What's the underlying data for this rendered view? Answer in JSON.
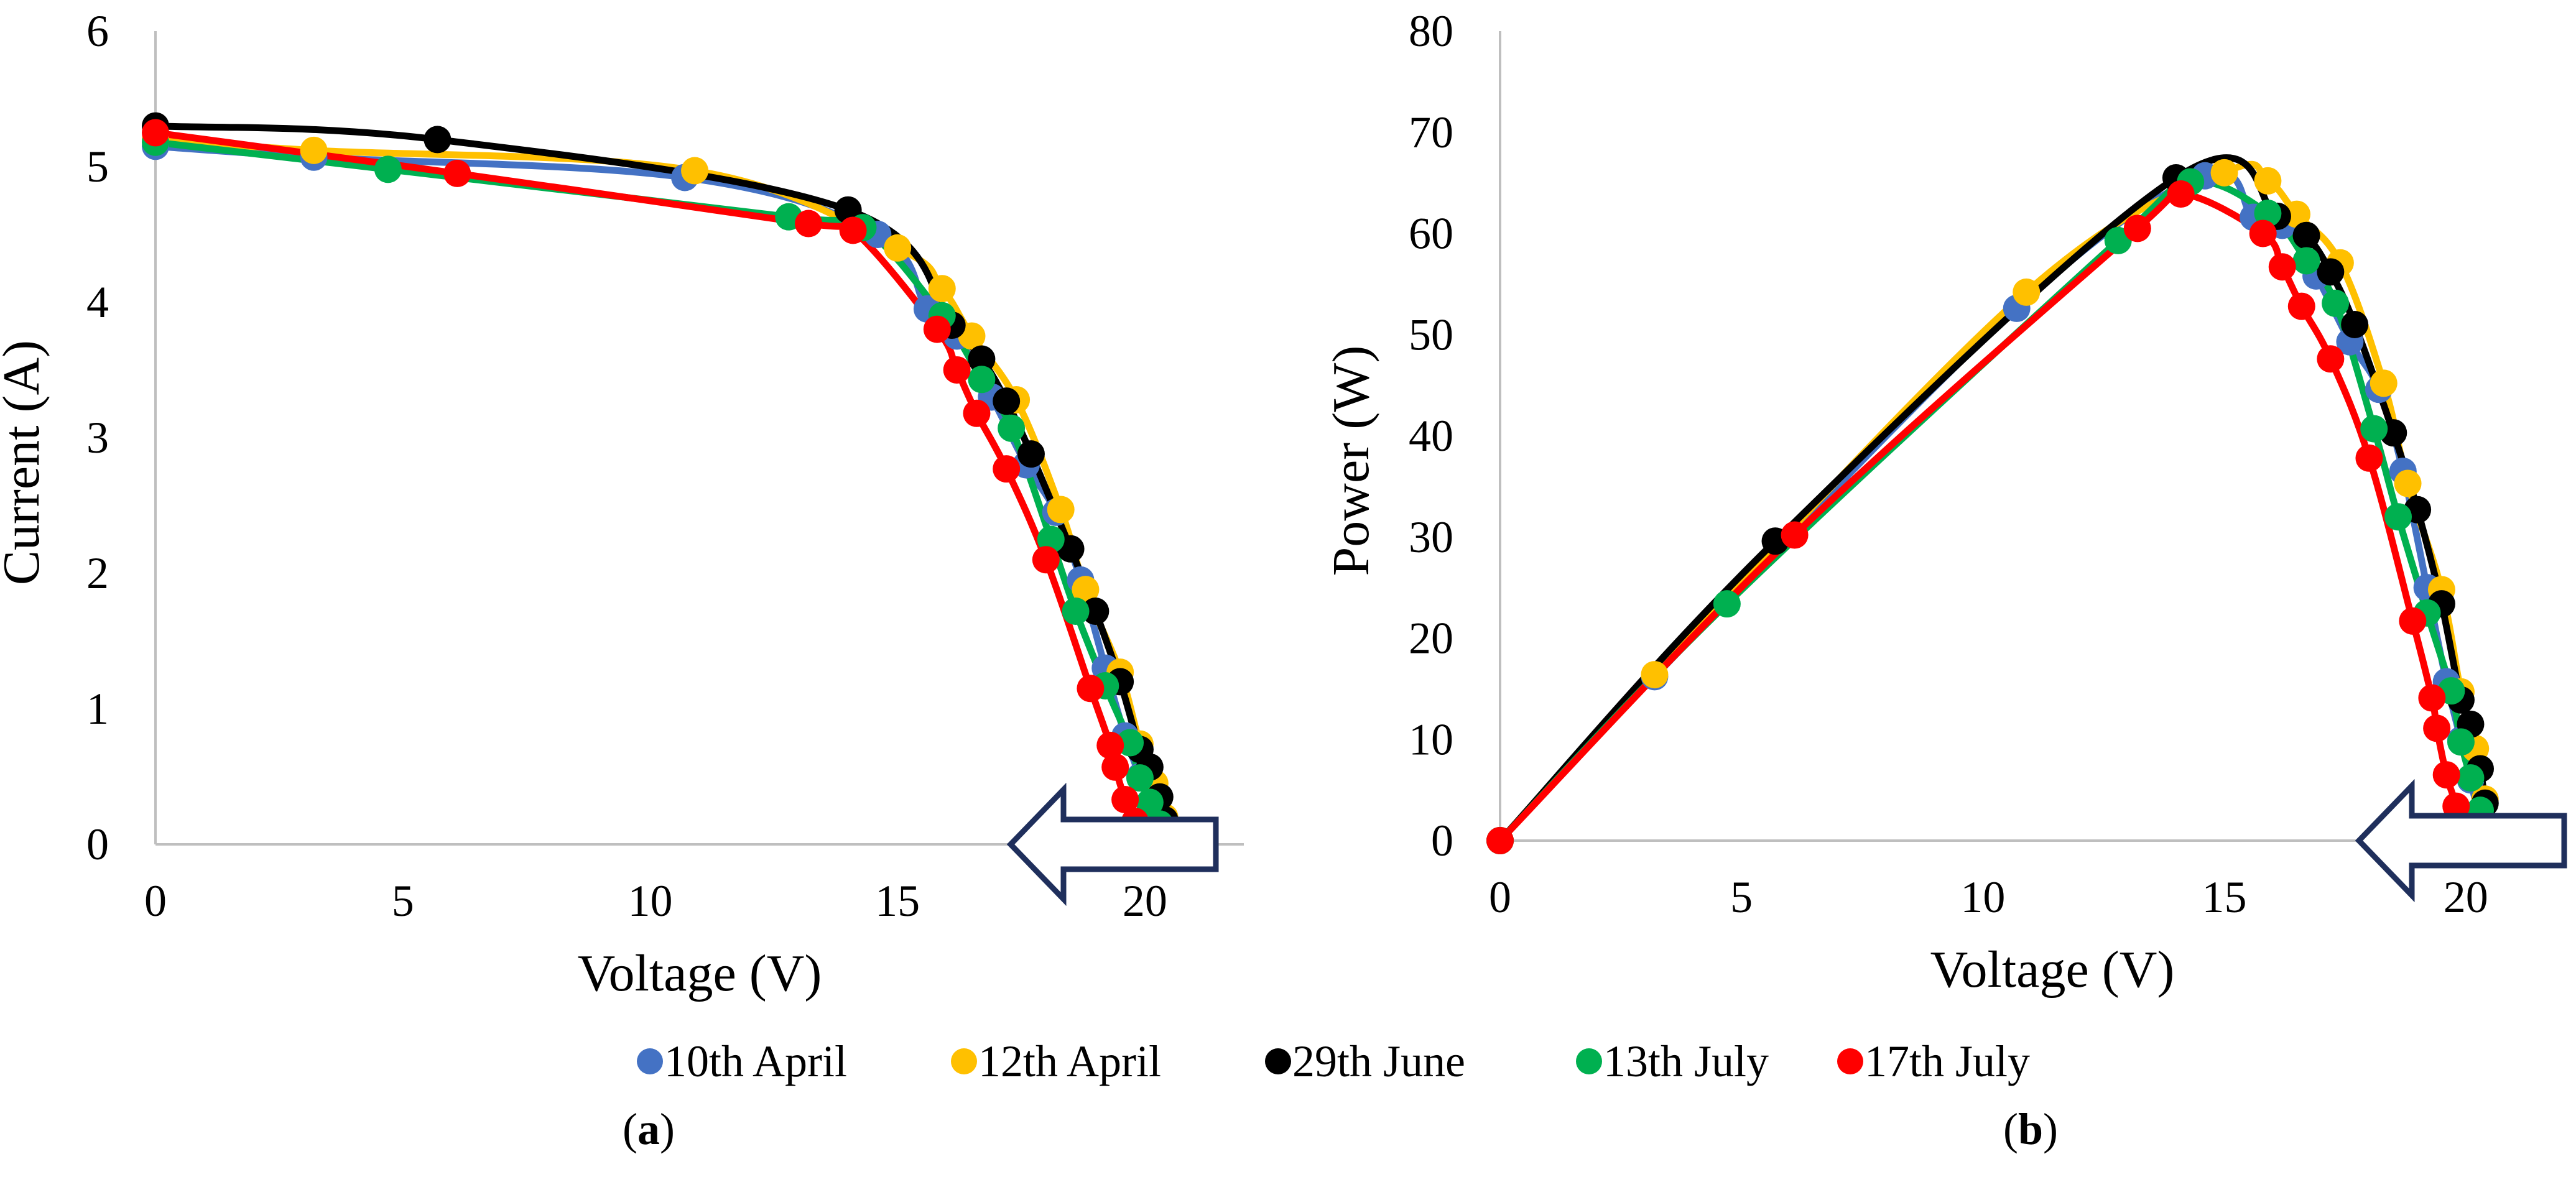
{
  "chart_data": [
    {
      "type": "line",
      "panel_label": "a",
      "xlabel": "Voltage (V)",
      "ylabel": "Current (A)",
      "xlim": [
        0,
        22
      ],
      "ylim": [
        0,
        6
      ],
      "xticks": [
        0,
        5,
        10,
        15,
        20
      ],
      "yticks": [
        0,
        1,
        2,
        3,
        4,
        5,
        6
      ],
      "grid": false,
      "legend": "bottom",
      "series": [
        {
          "name": "10th April",
          "color": "#4472c4",
          "points": [
            [
              0,
              5.15
            ],
            [
              3.2,
              5.07
            ],
            [
              10.7,
              4.92
            ],
            [
              14.6,
              4.5
            ],
            [
              15.6,
              3.95
            ],
            [
              16.2,
              3.75
            ],
            [
              16.9,
              3.3
            ],
            [
              17.6,
              2.8
            ],
            [
              18.2,
              2.45
            ],
            [
              18.7,
              1.95
            ],
            [
              19.2,
              1.3
            ],
            [
              19.6,
              0.8
            ],
            [
              19.9,
              0.5
            ],
            [
              20.1,
              0.3
            ],
            [
              20.3,
              0.1
            ],
            [
              20.5,
              0.0
            ]
          ]
        },
        {
          "name": "12th April",
          "color": "#ffc000",
          "points": [
            [
              0,
              5.2
            ],
            [
              3.2,
              5.12
            ],
            [
              10.9,
              4.97
            ],
            [
              15.0,
              4.4
            ],
            [
              15.9,
              4.1
            ],
            [
              16.5,
              3.75
            ],
            [
              17.4,
              3.28
            ],
            [
              18.3,
              2.47
            ],
            [
              18.8,
              1.88
            ],
            [
              19.5,
              1.27
            ],
            [
              19.9,
              0.74
            ],
            [
              20.2,
              0.45
            ],
            [
              20.4,
              0.2
            ],
            [
              20.6,
              0.0
            ]
          ]
        },
        {
          "name": "29th June",
          "color": "#000000",
          "points": [
            [
              0,
              5.3
            ],
            [
              5.7,
              5.2
            ],
            [
              14.0,
              4.68
            ],
            [
              16.1,
              3.83
            ],
            [
              16.7,
              3.58
            ],
            [
              17.2,
              3.27
            ],
            [
              17.7,
              2.88
            ],
            [
              18.5,
              2.18
            ],
            [
              19.0,
              1.72
            ],
            [
              19.5,
              1.2
            ],
            [
              19.9,
              0.7
            ],
            [
              20.1,
              0.57
            ],
            [
              20.3,
              0.35
            ],
            [
              20.4,
              0.18
            ],
            [
              20.5,
              0.0
            ]
          ]
        },
        {
          "name": "13th July",
          "color": "#00b050",
          "points": [
            [
              0,
              5.18
            ],
            [
              4.7,
              4.98
            ],
            [
              12.8,
              4.63
            ],
            [
              14.3,
              4.55
            ],
            [
              15.9,
              3.9
            ],
            [
              16.7,
              3.43
            ],
            [
              17.3,
              3.07
            ],
            [
              18.1,
              2.25
            ],
            [
              18.6,
              1.72
            ],
            [
              19.2,
              1.17
            ],
            [
              19.7,
              0.75
            ],
            [
              19.9,
              0.49
            ],
            [
              20.1,
              0.31
            ],
            [
              20.3,
              0.15
            ],
            [
              20.4,
              0.0
            ]
          ]
        },
        {
          "name": "17th July",
          "color": "#ff0000",
          "points": [
            [
              0,
              5.25
            ],
            [
              6.1,
              4.95
            ],
            [
              13.2,
              4.58
            ],
            [
              14.1,
              4.53
            ],
            [
              15.8,
              3.8
            ],
            [
              16.2,
              3.5
            ],
            [
              16.6,
              3.18
            ],
            [
              17.2,
              2.77
            ],
            [
              18.0,
              2.1
            ],
            [
              18.9,
              1.15
            ],
            [
              19.3,
              0.73
            ],
            [
              19.4,
              0.57
            ],
            [
              19.6,
              0.33
            ],
            [
              19.8,
              0.17
            ],
            [
              19.9,
              0.0
            ]
          ]
        }
      ]
    },
    {
      "type": "line",
      "panel_label": "b",
      "xlabel": "Voltage (V)",
      "ylabel": "Power (W)",
      "xlim": [
        0,
        22
      ],
      "ylim": [
        0,
        80
      ],
      "xticks": [
        0,
        5,
        10,
        15,
        20
      ],
      "yticks": [
        0,
        10,
        20,
        30,
        40,
        50,
        60,
        70,
        80
      ],
      "grid": false,
      "legend": "bottom",
      "series": [
        {
          "name": "10th April",
          "color": "#4472c4",
          "points": [
            [
              0,
              0
            ],
            [
              3.2,
              16.2
            ],
            [
              10.7,
              52.6
            ],
            [
              14.6,
              65.7
            ],
            [
              15.6,
              61.6
            ],
            [
              16.2,
              60.8
            ],
            [
              16.9,
              55.8
            ],
            [
              17.6,
              49.3
            ],
            [
              18.2,
              44.6
            ],
            [
              18.7,
              36.5
            ],
            [
              19.2,
              25.0
            ],
            [
              19.6,
              15.7
            ],
            [
              19.9,
              9.95
            ],
            [
              20.1,
              6.0
            ],
            [
              20.3,
              2.0
            ],
            [
              20.5,
              0
            ]
          ]
        },
        {
          "name": "12th April",
          "color": "#ffc000",
          "points": [
            [
              0,
              0
            ],
            [
              3.2,
              16.4
            ],
            [
              10.9,
              54.2
            ],
            [
              15.0,
              66.0
            ],
            [
              15.9,
              65.2
            ],
            [
              16.5,
              61.9
            ],
            [
              17.4,
              57.1
            ],
            [
              18.3,
              45.2
            ],
            [
              18.8,
              35.3
            ],
            [
              19.5,
              24.8
            ],
            [
              19.9,
              14.7
            ],
            [
              20.2,
              9.1
            ],
            [
              20.4,
              4.1
            ],
            [
              20.6,
              0
            ]
          ]
        },
        {
          "name": "29th June",
          "color": "#000000",
          "points": [
            [
              0,
              0
            ],
            [
              5.7,
              29.6
            ],
            [
              14.0,
              65.5
            ],
            [
              16.1,
              61.7
            ],
            [
              16.7,
              59.8
            ],
            [
              17.2,
              56.2
            ],
            [
              17.7,
              51.0
            ],
            [
              18.5,
              40.3
            ],
            [
              19.0,
              32.7
            ],
            [
              19.5,
              23.4
            ],
            [
              19.9,
              13.9
            ],
            [
              20.1,
              11.5
            ],
            [
              20.3,
              7.1
            ],
            [
              20.4,
              3.7
            ],
            [
              20.5,
              0
            ]
          ]
        },
        {
          "name": "13th July",
          "color": "#00b050",
          "points": [
            [
              0,
              0
            ],
            [
              4.7,
              23.4
            ],
            [
              12.8,
              59.3
            ],
            [
              14.3,
              65.1
            ],
            [
              15.9,
              62.0
            ],
            [
              16.7,
              57.3
            ],
            [
              17.3,
              53.1
            ],
            [
              18.1,
              40.7
            ],
            [
              18.6,
              32.0
            ],
            [
              19.2,
              22.5
            ],
            [
              19.7,
              14.8
            ],
            [
              19.9,
              9.75
            ],
            [
              20.1,
              6.2
            ],
            [
              20.3,
              3.0
            ],
            [
              20.4,
              0
            ]
          ]
        },
        {
          "name": "17th July",
          "color": "#ff0000",
          "points": [
            [
              0,
              0
            ],
            [
              6.1,
              30.2
            ],
            [
              13.2,
              60.5
            ],
            [
              14.1,
              63.9
            ],
            [
              15.8,
              60.0
            ],
            [
              16.2,
              56.7
            ],
            [
              16.6,
              52.8
            ],
            [
              17.2,
              47.6
            ],
            [
              18.0,
              37.8
            ],
            [
              18.9,
              21.7
            ],
            [
              19.3,
              14.1
            ],
            [
              19.4,
              11.1
            ],
            [
              19.6,
              6.5
            ],
            [
              19.8,
              3.4
            ],
            [
              19.9,
              0
            ]
          ]
        }
      ]
    }
  ]
}
